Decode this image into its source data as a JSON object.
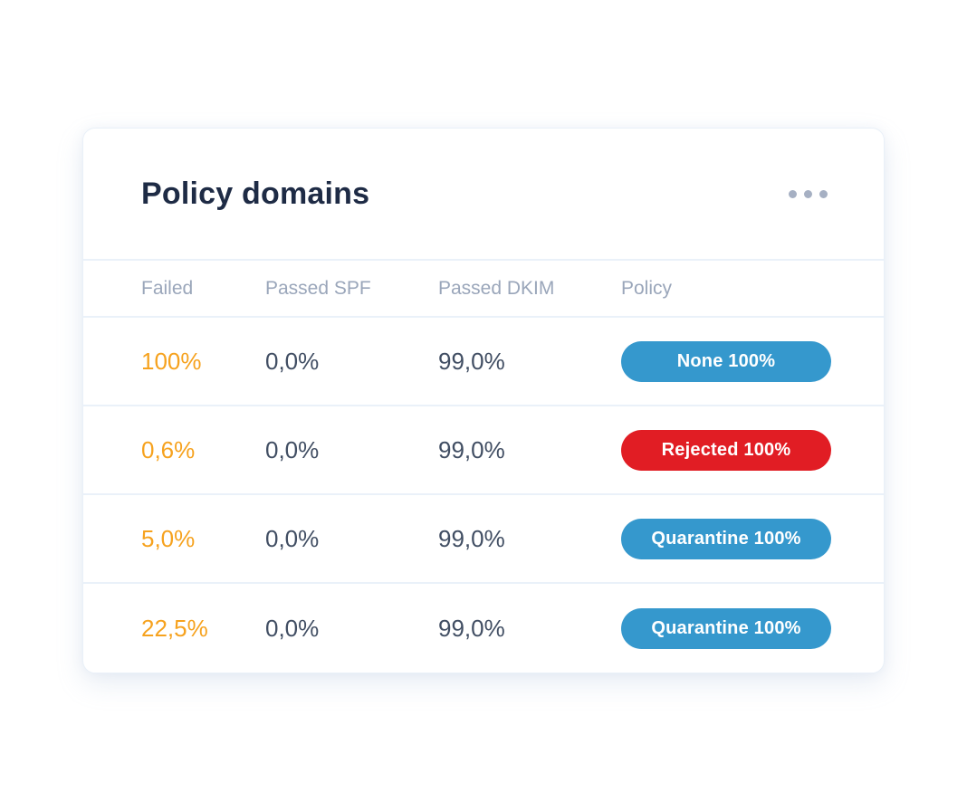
{
  "card": {
    "title": "Policy domains",
    "menu": {
      "icon": "ellipsis-icon"
    },
    "table": {
      "columns": [
        {
          "key": "failed",
          "label": "Failed"
        },
        {
          "key": "passed_spf",
          "label": "Passed SPF"
        },
        {
          "key": "passed_dkim",
          "label": "Passed DKIM"
        },
        {
          "key": "policy",
          "label": "Policy"
        }
      ],
      "rows": [
        {
          "failed": "100%",
          "passed_spf": "0,0%",
          "passed_dkim": "99,0%",
          "policy_label": "None 100%",
          "policy_color": "#3598cd"
        },
        {
          "failed": "0,6%",
          "passed_spf": "0,0%",
          "passed_dkim": "99,0%",
          "policy_label": "Rejected 100%",
          "policy_color": "#e11d24"
        },
        {
          "failed": "5,0%",
          "passed_spf": "0,0%",
          "passed_dkim": "99,0%",
          "policy_label": "Quarantine 100%",
          "policy_color": "#3598cd"
        },
        {
          "failed": "22,5%",
          "passed_spf": "0,0%",
          "passed_dkim": "99,0%",
          "policy_label": "Quarantine 100%",
          "policy_color": "#3598cd"
        }
      ]
    },
    "colors": {
      "accent_orange": "#f6a21e",
      "badge_blue": "#3598cd",
      "badge_red": "#e11d24",
      "title_text": "#1e2b45",
      "value_text": "#414e63",
      "header_text": "#9aa6ba",
      "divider": "#eaf1f9"
    }
  }
}
